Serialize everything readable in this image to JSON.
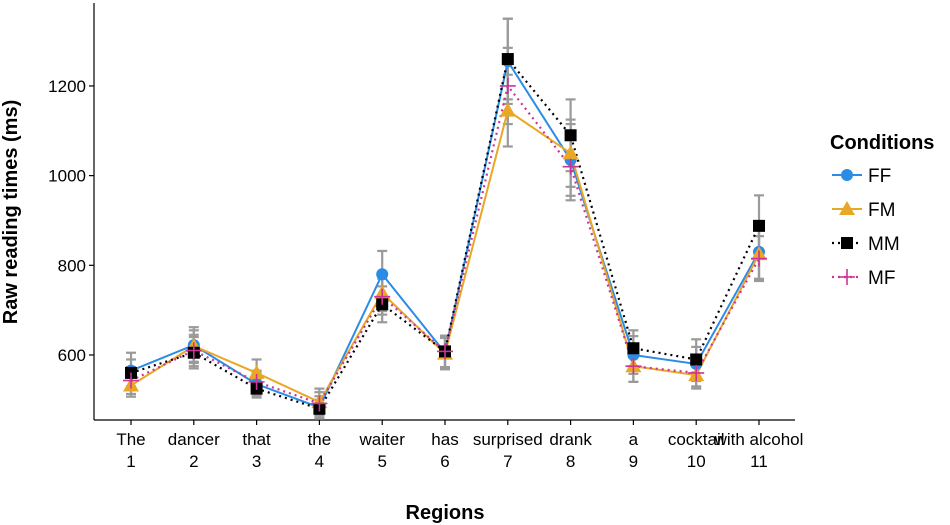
{
  "chart_data": {
    "type": "line",
    "title": "",
    "xlabel": "Regions",
    "ylabel": "Raw reading times (ms)",
    "ylim": [
      455,
      1385
    ],
    "yticks": [
      600,
      800,
      1000,
      1200
    ],
    "categories": [
      {
        "word": "The",
        "num": "1"
      },
      {
        "word": "dancer",
        "num": "2"
      },
      {
        "word": "that",
        "num": "3"
      },
      {
        "word": "the",
        "num": "4"
      },
      {
        "word": "waiter",
        "num": "5"
      },
      {
        "word": "has",
        "num": "6"
      },
      {
        "word": "surprised",
        "num": "7"
      },
      {
        "word": "drank",
        "num": "8"
      },
      {
        "word": "a",
        "num": "9"
      },
      {
        "word": "cocktail",
        "num": "10"
      },
      {
        "word": "with alcohol",
        "num": "11"
      }
    ],
    "legend_title": "Conditions",
    "legend_position": "right",
    "grid": false,
    "series": [
      {
        "name": "FF",
        "color": "#2b8ce6",
        "marker": "circle",
        "linestyle": "solid",
        "values": [
          565,
          622,
          535,
          483,
          780,
          605,
          1255,
          1035,
          600,
          580,
          830
        ],
        "errors": [
          40,
          40,
          25,
          25,
          52,
          35,
          95,
          80,
          42,
          38,
          62
        ]
      },
      {
        "name": "FM",
        "color": "#e8a825",
        "marker": "triangle",
        "linestyle": "solid",
        "values": [
          532,
          620,
          560,
          495,
          738,
          603,
          1145,
          1050,
          575,
          555,
          825
        ],
        "errors": [
          25,
          35,
          30,
          30,
          40,
          35,
          80,
          75,
          35,
          30,
          55
        ]
      },
      {
        "name": "MM",
        "color": "#000000",
        "marker": "square",
        "linestyle": "dotted",
        "values": [
          560,
          605,
          525,
          480,
          713,
          608,
          1260,
          1090,
          615,
          590,
          888
        ],
        "errors": [
          30,
          35,
          20,
          20,
          40,
          35,
          90,
          80,
          40,
          45,
          68
        ]
      },
      {
        "name": "MF",
        "color": "#cc3399",
        "marker": "plus",
        "linestyle": "dotted",
        "values": [
          543,
          610,
          540,
          492,
          730,
          608,
          1200,
          1020,
          575,
          560,
          815
        ],
        "errors": [
          30,
          35,
          25,
          25,
          40,
          35,
          85,
          75,
          35,
          30,
          50
        ]
      }
    ]
  }
}
